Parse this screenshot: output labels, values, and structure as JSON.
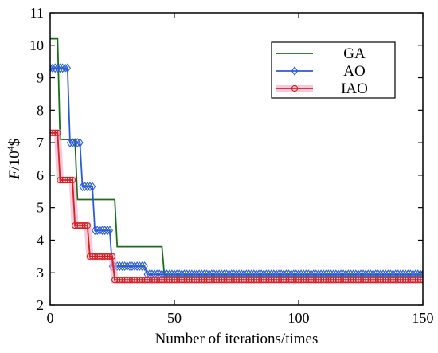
{
  "chart_data": {
    "type": "line",
    "title": "",
    "xlabel": "Number of iterations/times",
    "ylabel_main": "F",
    "ylabel_unit": "/10",
    "ylabel_exp": "4",
    "ylabel_suffix": "$",
    "xlim": [
      0,
      150
    ],
    "ylim": [
      2,
      11
    ],
    "xticks": [
      0,
      50,
      100,
      150
    ],
    "yticks": [
      2,
      3,
      4,
      5,
      6,
      7,
      8,
      9,
      10,
      11
    ],
    "grid": false,
    "legend_position": "top-right",
    "series": [
      {
        "name": "GA",
        "color": "#1a6e1a",
        "marker": "none",
        "points": [
          [
            0,
            10.2
          ],
          [
            3,
            10.2
          ],
          [
            4,
            7.1
          ],
          [
            10,
            7.1
          ],
          [
            11,
            5.25
          ],
          [
            26,
            5.25
          ],
          [
            27,
            3.8
          ],
          [
            45,
            3.8
          ],
          [
            46,
            2.9
          ],
          [
            150,
            2.9
          ]
        ]
      },
      {
        "name": "AO",
        "color": "#2a5bd7",
        "marker": "diamond",
        "points": [
          [
            0,
            9.3
          ],
          [
            7,
            9.3
          ],
          [
            8,
            7.0
          ],
          [
            12,
            7.0
          ],
          [
            13,
            5.65
          ],
          [
            17,
            5.65
          ],
          [
            18,
            4.3
          ],
          [
            24,
            4.3
          ],
          [
            25,
            3.2
          ],
          [
            38,
            3.2
          ],
          [
            39,
            2.95
          ],
          [
            150,
            2.95
          ]
        ]
      },
      {
        "name": "IAO",
        "color": "#d42020",
        "marker": "circle",
        "points": [
          [
            0,
            7.3
          ],
          [
            3,
            7.3
          ],
          [
            4,
            5.85
          ],
          [
            9,
            5.85
          ],
          [
            10,
            4.45
          ],
          [
            15,
            4.45
          ],
          [
            16,
            3.5
          ],
          [
            25,
            3.5
          ],
          [
            26,
            2.78
          ],
          [
            150,
            2.78
          ]
        ]
      }
    ]
  }
}
